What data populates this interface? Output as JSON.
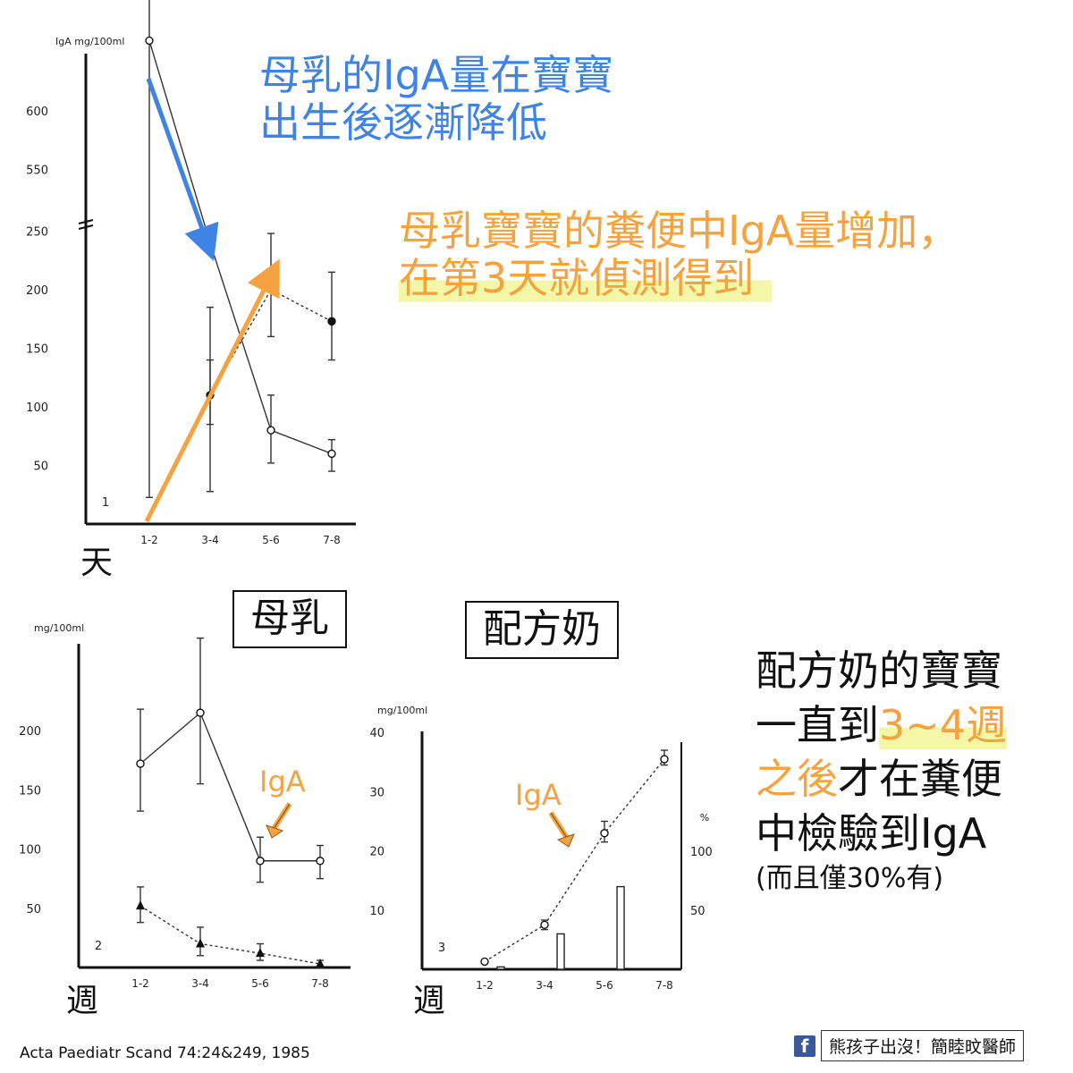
{
  "annotations": {
    "top_blue": [
      "母乳的IgA量在寶寶",
      "出生後逐漸降低"
    ],
    "top_orange_line1": "母乳寶寶的糞便中IgA量增加，",
    "top_orange_line2": "在第3天就偵測得到",
    "box_breast": "母乳",
    "box_formula": "配方奶",
    "right_line1": "配方奶的寶寶",
    "right_line2_pre": "一直到",
    "right_line2_hl": "3~4週",
    "right_line3_hl": "之後",
    "right_line3_post": "才在糞便",
    "right_line4": "中檢驗到IgA",
    "right_line5": "(而且僅30%有)",
    "unit_day": "天",
    "unit_week_left": "週",
    "unit_week_right": "週",
    "iga_label_left": "IgA",
    "iga_label_right": "IgA"
  },
  "footer": {
    "citation": "Acta Paediatr Scand 74:24&249, 1985",
    "fb_icon": "f",
    "fb_text": "熊孩子出沒！簡睦旼醫師"
  },
  "colors": {
    "blue": "#3f84e5",
    "orange": "#f4a340",
    "highlight": "#f4f6a8",
    "facebook": "#3b5998"
  },
  "chart_data": [
    {
      "type": "line",
      "panel_number": "1",
      "ylabel": "IgA mg/100ml",
      "yticks": [
        "50",
        "100",
        "150",
        "200",
        "250",
        "550",
        "600"
      ],
      "axis_break": true,
      "categories": [
        "1-2",
        "3-4",
        "5-6",
        "7-8"
      ],
      "series": [
        {
          "name": "",
          "style": "solid",
          "marker": "open-circle",
          "values": [
            660,
            240,
            80,
            60
          ],
          "error_high": [
            700,
            275,
            110,
            72
          ],
          "error_low": [
            270,
            185,
            52,
            45
          ]
        },
        {
          "name": "",
          "style": "dashed",
          "marker": "filled-circle",
          "values": [
            null,
            110,
            200,
            173
          ],
          "error_high": [
            null,
            140,
            248,
            215
          ],
          "error_low": [
            null,
            85,
            160,
            140
          ]
        }
      ]
    },
    {
      "type": "line",
      "panel_number": "2",
      "ylabel": "mg/100ml",
      "yticks": [
        "50",
        "100",
        "150",
        "200"
      ],
      "ylim": [
        0,
        250
      ],
      "categories": [
        "1-2",
        "3-4",
        "5-6",
        "7-8"
      ],
      "series": [
        {
          "name": "",
          "style": "solid",
          "marker": "open-circle",
          "values": [
            172,
            215,
            90,
            90
          ],
          "error_high": [
            218,
            278,
            110,
            103
          ],
          "error_low": [
            132,
            155,
            72,
            75
          ]
        },
        {
          "name": "",
          "style": "dashed",
          "marker": "filled-triangle",
          "values": [
            52,
            20,
            12,
            3
          ],
          "error_high": [
            68,
            34,
            20,
            6
          ],
          "error_low": [
            38,
            10,
            6,
            0
          ]
        }
      ]
    },
    {
      "type": "line",
      "panel_number": "3",
      "ylabel": "mg/100ml",
      "yticks": [
        "10",
        "20",
        "30",
        "40"
      ],
      "ylim": [
        0,
        40
      ],
      "y2label": "%",
      "y2ticks": [
        "50",
        "100"
      ],
      "y2lim": [
        0,
        200
      ],
      "categories": [
        "1-2",
        "3-4",
        "5-6",
        "7-8"
      ],
      "series": [
        {
          "name": "",
          "style": "dashed",
          "marker": "open-circle",
          "values": [
            1.3,
            7.5,
            23,
            35.5
          ],
          "error_high": [
            1.6,
            8.3,
            25,
            37
          ],
          "error_low": [
            1.0,
            6.7,
            21.5,
            34.5
          ]
        }
      ],
      "bars_percent": [
        {
          "x": 1.15,
          "value": 2
        },
        {
          "x": 2.15,
          "value": 30
        },
        {
          "x": 3.15,
          "value": 70
        }
      ]
    }
  ]
}
